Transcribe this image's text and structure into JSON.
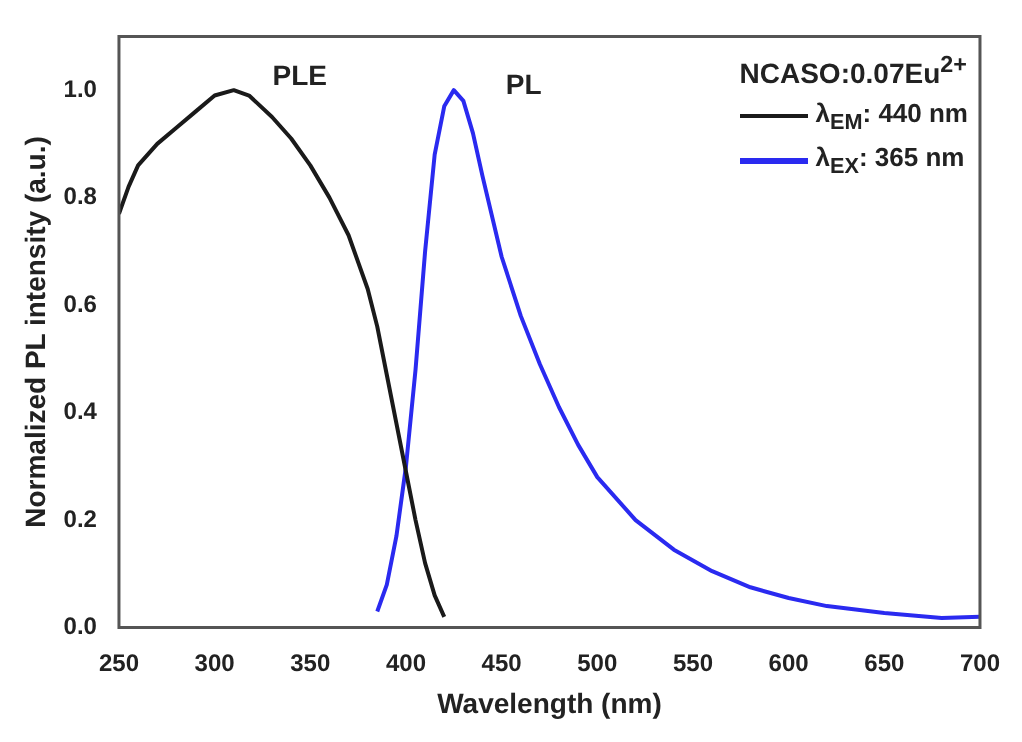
{
  "chart_data": {
    "type": "line",
    "xlabel": "Wavelength (nm)",
    "ylabel": "Normalized PL intensity (a.u.)",
    "legend_title": "NCASO:0.07Eu$^{2+}$",
    "legend": "top right",
    "grid": false,
    "marker": "none",
    "line_style": "solid",
    "xlim": [
      250,
      700
    ],
    "xticks": [
      250,
      300,
      350,
      400,
      450,
      500,
      550,
      600,
      650,
      700
    ],
    "ylim": [
      0,
      1.1
    ],
    "yticks": [
      {
        "value": 0,
        "label": "0.0"
      },
      {
        "value": 0.2,
        "label": "0.2"
      },
      {
        "value": 0.4,
        "label": "0.4"
      },
      {
        "value": 0.6,
        "label": "0.6"
      },
      {
        "value": 0.8,
        "label": "0.8"
      },
      {
        "value": 1,
        "label": "1.0"
      }
    ],
    "annotations": [
      "PLE",
      "PL"
    ],
    "series": [
      {
        "name": "λ$_{EM}$: 440 nm",
        "color": "#1a1a1a",
        "x": [
          250,
          255,
          260,
          270,
          280,
          290,
          300,
          310,
          318,
          330,
          340,
          350,
          360,
          370,
          380,
          385,
          390,
          395,
          400,
          405,
          410,
          415,
          420
        ],
        "values": [
          0.77,
          0.82,
          0.86,
          0.9,
          0.93,
          0.96,
          0.99,
          1.0,
          0.99,
          0.95,
          0.91,
          0.86,
          0.8,
          0.73,
          0.63,
          0.56,
          0.47,
          0.38,
          0.29,
          0.2,
          0.12,
          0.06,
          0.02
        ]
      },
      {
        "name": "λ$_{EX}$: 365 nm",
        "color": "#2a2af0",
        "x": [
          385,
          390,
          395,
          400,
          405,
          410,
          415,
          420,
          425,
          430,
          435,
          440,
          450,
          460,
          470,
          480,
          490,
          500,
          520,
          540,
          560,
          580,
          600,
          620,
          650,
          680,
          700
        ],
        "values": [
          0.03,
          0.08,
          0.17,
          0.3,
          0.48,
          0.7,
          0.88,
          0.97,
          1.0,
          0.98,
          0.92,
          0.84,
          0.69,
          0.58,
          0.49,
          0.41,
          0.34,
          0.28,
          0.2,
          0.145,
          0.105,
          0.075,
          0.055,
          0.04,
          0.027,
          0.018,
          0.02
        ]
      }
    ]
  }
}
